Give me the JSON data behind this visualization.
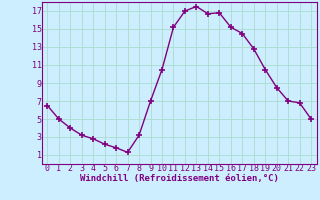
{
  "x": [
    0,
    1,
    2,
    3,
    4,
    5,
    6,
    7,
    8,
    9,
    10,
    11,
    12,
    13,
    14,
    15,
    16,
    17,
    18,
    19,
    20,
    21,
    22,
    23
  ],
  "y": [
    6.5,
    5.0,
    4.0,
    3.2,
    2.8,
    2.2,
    1.8,
    1.3,
    3.2,
    7.0,
    10.5,
    15.2,
    17.0,
    17.5,
    16.7,
    16.8,
    15.2,
    14.5,
    12.8,
    10.5,
    8.5,
    7.0,
    6.8,
    5.0
  ],
  "line_color": "#800080",
  "marker": "+",
  "markersize": 4,
  "linewidth": 1.0,
  "bg_color": "#cceeff",
  "grid_color": "#aaddcc",
  "xlabel": "Windchill (Refroidissement éolien,°C)",
  "xlim": [
    -0.5,
    23.5
  ],
  "ylim": [
    0,
    18
  ],
  "xticks": [
    0,
    1,
    2,
    3,
    4,
    5,
    6,
    7,
    8,
    9,
    10,
    11,
    12,
    13,
    14,
    15,
    16,
    17,
    18,
    19,
    20,
    21,
    22,
    23
  ],
  "yticks": [
    1,
    3,
    5,
    7,
    9,
    11,
    13,
    15,
    17
  ],
  "tick_color": "#800080",
  "label_color": "#800080",
  "xlabel_fontsize": 6.5,
  "tick_fontsize": 6,
  "axis_line_color": "#800080",
  "markeredgewidth": 1.2
}
